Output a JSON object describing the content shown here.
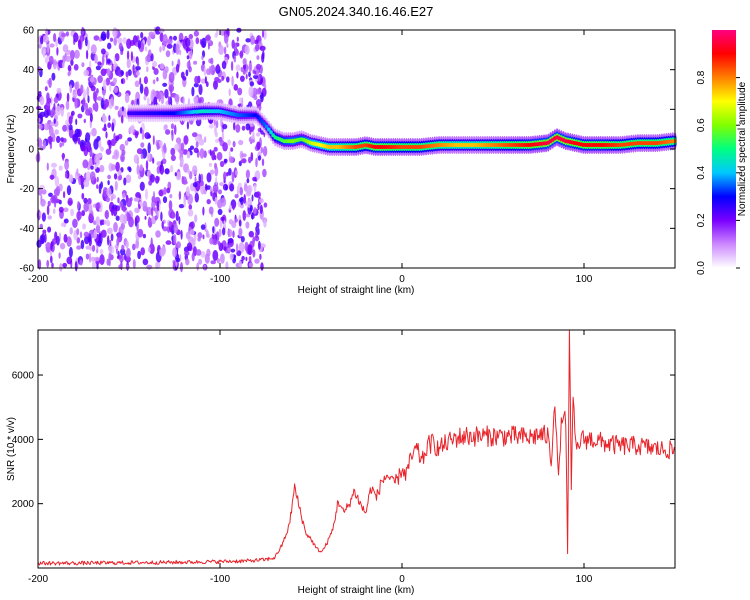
{
  "title": "GN05.2024.340.16.46.E27",
  "chart_data": [
    {
      "type": "heatmap",
      "title": "GN05.2024.340.16.46.E27",
      "xlabel": "Height of straight line (km)",
      "ylabel": "Frequency (Hz)",
      "xlim": [
        -200,
        150
      ],
      "ylim": [
        -60,
        60
      ],
      "xticks": [
        -200,
        -100,
        0,
        100
      ],
      "yticks": [
        60,
        40,
        20,
        0,
        -20,
        -40,
        -60
      ],
      "colorbar": {
        "label": "Normalized spectral amplitude",
        "range": [
          0,
          1
        ],
        "ticks": [
          "0.0",
          "0.2",
          "0.4",
          "0.6",
          "0.8"
        ],
        "colors": [
          "#ffffff",
          "#cc88ff",
          "#7a00ff",
          "#0000ff",
          "#00c8ff",
          "#00ff80",
          "#80ff00",
          "#ffff00",
          "#ff8000",
          "#ff0000",
          "#ff0080"
        ]
      },
      "features": {
        "noise_region_x": [
          -200,
          -75
        ],
        "ridge": {
          "x": [
            -150,
            -125,
            -110,
            -100,
            -90,
            -80,
            -75,
            -70,
            -65,
            -60,
            -55,
            -50,
            -45,
            -40,
            -35,
            -30,
            -25,
            -20,
            -15,
            -10,
            0,
            10,
            20,
            30,
            40,
            50,
            60,
            70,
            80,
            85,
            90,
            95,
            100,
            110,
            120,
            130,
            140,
            150
          ],
          "y": [
            18,
            18,
            19,
            19,
            17,
            17,
            12,
            6,
            4,
            4,
            5,
            3,
            2,
            1,
            1,
            1,
            1,
            2,
            1,
            1,
            1,
            1,
            2,
            2,
            2,
            2,
            2,
            2,
            3,
            6,
            4,
            3,
            2,
            2,
            2,
            3,
            3,
            4
          ],
          "amplitude": [
            0.25,
            0.3,
            0.45,
            0.4,
            0.35,
            0.3,
            0.35,
            0.5,
            0.55,
            0.6,
            0.55,
            0.65,
            0.7,
            0.75,
            0.75,
            0.8,
            0.85,
            0.85,
            0.9,
            0.9,
            0.85,
            0.85,
            0.8,
            0.75,
            0.75,
            0.8,
            0.85,
            0.9,
            0.95,
            0.95,
            0.95,
            0.9,
            0.9,
            0.9,
            0.85,
            0.85,
            0.85,
            0.8
          ]
        }
      }
    },
    {
      "type": "line",
      "xlabel": "Height of straight line (km)",
      "ylabel": "SNR (10 * v/v)",
      "xlim": [
        -200,
        150
      ],
      "ylim": [
        0,
        7400
      ],
      "xticks": [
        -200,
        -100,
        0,
        100
      ],
      "yticks": [
        2000,
        4000,
        6000
      ],
      "color": "#e8242b",
      "series": [
        {
          "x": [
            -200,
            -180,
            -160,
            -140,
            -120,
            -100,
            -85,
            -75,
            -70,
            -66,
            -62,
            -59,
            -56,
            -53,
            -50,
            -47,
            -44,
            -41,
            -38,
            -35,
            -32,
            -29,
            -26,
            -23,
            -20,
            -17,
            -14,
            -11,
            -8,
            -5,
            -2,
            0,
            2,
            5,
            8,
            11,
            14,
            17,
            20,
            25,
            30,
            35,
            40,
            50,
            60,
            70,
            75,
            80,
            82,
            84,
            86,
            88,
            90,
            91,
            92,
            93,
            94,
            96,
            98,
            100,
            105,
            110,
            120,
            130,
            140,
            150
          ],
          "y": [
            150,
            150,
            160,
            170,
            180,
            200,
            220,
            260,
            320,
            700,
            1300,
            2500,
            1800,
            1100,
            900,
            600,
            500,
            800,
            1200,
            2100,
            1700,
            2000,
            2400,
            2000,
            1700,
            2500,
            2200,
            2700,
            2900,
            2600,
            2800,
            3100,
            2900,
            3400,
            3700,
            3300,
            3800,
            3900,
            3700,
            3900,
            4050,
            4100,
            4100,
            4100,
            4100,
            4050,
            4150,
            4100,
            3300,
            5400,
            2700,
            4900,
            4400,
            500,
            7200,
            2500,
            5000,
            3600,
            4000,
            4000,
            4000,
            3900,
            3800,
            3800,
            3700,
            3650
          ]
        }
      ]
    }
  ]
}
